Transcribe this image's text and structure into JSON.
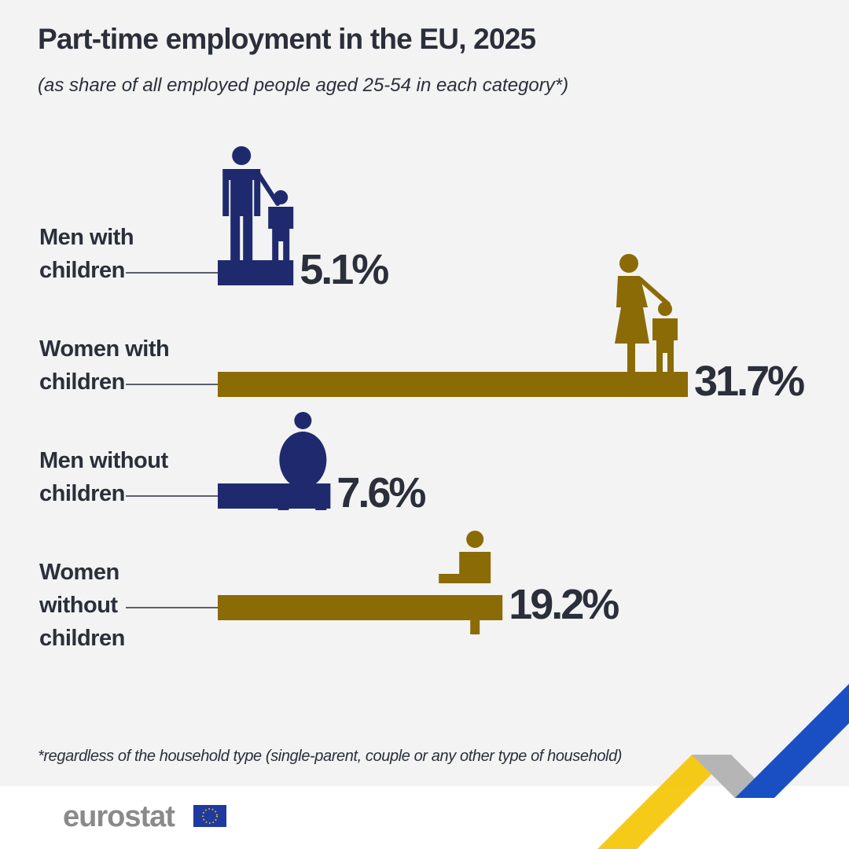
{
  "chart_data": {
    "type": "bar",
    "orientation": "horizontal",
    "title": "Part-time employment in the EU, 2025",
    "subtitle": "(as share of all employed people aged 25-54 in each category*)",
    "categories": [
      "Men with children",
      "Women with children",
      "Men without children",
      "Women without children"
    ],
    "values": [
      5.1,
      31.7,
      7.6,
      19.2
    ],
    "value_labels": [
      "5.1%",
      "31.7%",
      "7.6%",
      "19.2%"
    ],
    "colors": [
      "#1f2a6e",
      "#8a6b06",
      "#1f2a6e",
      "#8a6b06"
    ],
    "footnote": "*regardless of the household type (single-parent, couple or any other type of household)",
    "logo": "eurostat"
  }
}
